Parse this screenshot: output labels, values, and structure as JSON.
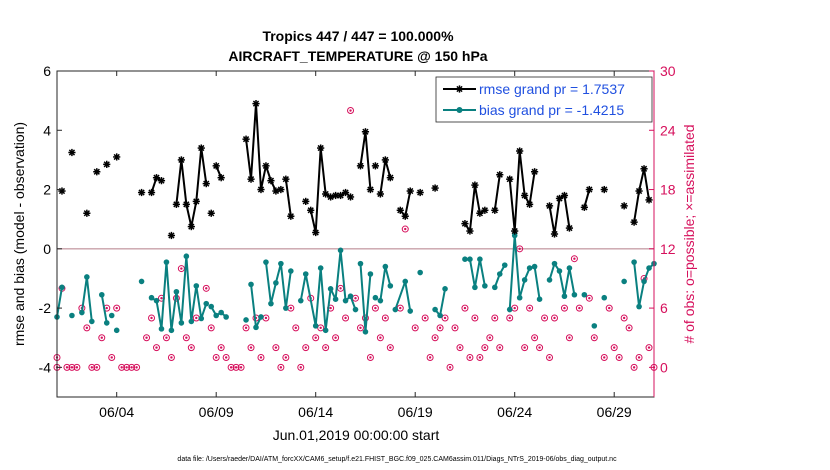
{
  "chart_data": {
    "type": "line",
    "title_line1": "Tropics 447 / 447 = 100.000%",
    "title_line2": "AIRCRAFT_TEMPERATURE @ 150 hPa",
    "ylabel_left": "rmse and bias (model - observation)",
    "ylabel_right": "# of obs: o=possible; ×=assimilated",
    "xlabel": "Jun.01,2019 00:00:00 start",
    "footer": "data file: /Users/raeder/DAI/ATM_forcXX/CAM6_setup/f.e21.FHIST_BGC.f09_025.CAM6assim.011/Diags_NTrS_2019-06/obs_diag_output.nc",
    "xlim": [
      1,
      31
    ],
    "ylim_left": [
      -5,
      6
    ],
    "ylim_right": [
      -3,
      30
    ],
    "x_ticks": [
      {
        "day": 4,
        "label": "06/04"
      },
      {
        "day": 9,
        "label": "06/09"
      },
      {
        "day": 14,
        "label": "06/14"
      },
      {
        "day": 19,
        "label": "06/19"
      },
      {
        "day": 24,
        "label": "06/24"
      },
      {
        "day": 29,
        "label": "06/29"
      }
    ],
    "y_ticks_left": [
      -4,
      -2,
      0,
      2,
      4,
      6
    ],
    "y_ticks_right": [
      0,
      6,
      12,
      18,
      24,
      30
    ],
    "colors": {
      "rmse": "#000000",
      "bias": "#0a8080",
      "obs": "#d6105c",
      "zero_line": "#c8a0a8",
      "right_axis": "#d6105c",
      "legend_text": "#2050e0"
    },
    "series": [
      {
        "name": "rmse grand pr = 1.7537",
        "segments": [
          [
            [
              1.25,
              1.95
            ]
          ],
          [
            [
              1.75,
              3.25
            ]
          ],
          [
            [
              2.5,
              1.2
            ]
          ],
          [
            [
              3.0,
              2.6
            ]
          ],
          [
            [
              3.5,
              2.85
            ]
          ],
          [
            [
              4.0,
              3.1
            ]
          ],
          [
            [
              5.25,
              1.9
            ]
          ],
          [
            [
              5.75,
              1.9
            ],
            [
              6.0,
              2.4
            ],
            [
              6.25,
              2.3
            ]
          ],
          [
            [
              6.75,
              0.45
            ]
          ],
          [
            [
              7.0,
              1.5
            ],
            [
              7.25,
              3.0
            ],
            [
              7.5,
              1.5
            ],
            [
              7.75,
              0.75
            ],
            [
              8.0,
              1.6
            ],
            [
              8.25,
              3.4
            ],
            [
              8.5,
              2.2
            ]
          ],
          [
            [
              8.75,
              1.2
            ]
          ],
          [
            [
              9.0,
              2.8
            ],
            [
              9.25,
              2.4
            ]
          ],
          [
            [
              10.5,
              3.7
            ],
            [
              10.75,
              2.35
            ],
            [
              11.0,
              4.9
            ],
            [
              11.25,
              2.0
            ],
            [
              11.5,
              2.8
            ],
            [
              11.75,
              2.3
            ],
            [
              12.0,
              1.95
            ]
          ],
          [
            [
              12.25,
              2.0
            ]
          ],
          [
            [
              12.5,
              2.35
            ],
            [
              12.75,
              1.1
            ]
          ],
          [
            [
              13.5,
              1.6
            ]
          ],
          [
            [
              13.75,
              1.3
            ],
            [
              14.0,
              0.55
            ],
            [
              14.25,
              3.4
            ],
            [
              14.5,
              1.85
            ],
            [
              14.75,
              1.75
            ],
            [
              15.0,
              1.8
            ],
            [
              15.25,
              1.8
            ],
            [
              15.5,
              1.9
            ],
            [
              15.75,
              1.75
            ]
          ],
          [
            [
              16.25,
              2.8
            ],
            [
              16.5,
              3.95
            ],
            [
              16.75,
              2.0
            ]
          ],
          [
            [
              17.0,
              2.8
            ]
          ],
          [
            [
              17.25,
              1.85
            ],
            [
              17.5,
              3.0
            ],
            [
              17.75,
              2.4
            ]
          ],
          [
            [
              18.25,
              1.3
            ],
            [
              18.5,
              1.1
            ],
            [
              18.75,
              1.95
            ]
          ],
          [
            [
              19.25,
              1.9
            ]
          ],
          [
            [
              20.0,
              2.05
            ]
          ],
          [
            [
              21.5,
              0.85
            ],
            [
              21.75,
              0.6
            ],
            [
              22.0,
              2.15
            ],
            [
              22.25,
              1.2
            ],
            [
              22.5,
              1.3
            ]
          ],
          [
            [
              23.0,
              1.3
            ],
            [
              23.25,
              2.5
            ]
          ],
          [
            [
              23.75,
              2.35
            ],
            [
              24.0,
              0.6
            ],
            [
              24.25,
              3.3
            ],
            [
              24.5,
              1.8
            ],
            [
              24.75,
              1.5
            ],
            [
              25.0,
              2.6
            ]
          ],
          [
            [
              25.75,
              1.45
            ],
            [
              26.0,
              0.5
            ],
            [
              26.25,
              1.7
            ],
            [
              26.5,
              1.8
            ],
            [
              26.75,
              0.7
            ]
          ],
          [
            [
              27.5,
              1.4
            ],
            [
              27.75,
              2.0
            ]
          ],
          [
            [
              28.5,
              2.0
            ]
          ],
          [
            [
              29.5,
              1.45
            ]
          ],
          [
            [
              30.0,
              0.9
            ],
            [
              30.25,
              1.95
            ],
            [
              30.5,
              2.7
            ],
            [
              30.75,
              1.65
            ]
          ]
        ]
      },
      {
        "name": "bias grand pr = -1.4215",
        "segments": [
          [
            [
              1.0,
              -2.3
            ],
            [
              1.25,
              -1.3
            ]
          ],
          [
            [
              1.75,
              -2.25
            ]
          ],
          [
            [
              2.25,
              -2.15
            ],
            [
              2.5,
              -0.95
            ],
            [
              2.75,
              -2.45
            ]
          ],
          [
            [
              3.25,
              -1.55
            ],
            [
              3.5,
              -2.5
            ]
          ],
          [
            [
              3.75,
              -2.25
            ]
          ],
          [
            [
              4.0,
              -2.75
            ]
          ],
          [
            [
              5.25,
              -1.1
            ]
          ],
          [
            [
              5.75,
              -1.65
            ],
            [
              6.0,
              -1.75
            ],
            [
              6.25,
              -2.7
            ],
            [
              6.5,
              -0.45
            ],
            [
              6.75,
              -2.75
            ],
            [
              7.0,
              -1.45
            ],
            [
              7.25,
              -2.5
            ],
            [
              7.5,
              -0.25
            ],
            [
              7.75,
              -2.45
            ],
            [
              8.0,
              -1.25
            ],
            [
              8.25,
              -2.35
            ],
            [
              8.5,
              -1.85
            ]
          ],
          [
            [
              8.75,
              -1.95
            ],
            [
              9.0,
              -2.25
            ],
            [
              9.25,
              -2.15
            ],
            [
              9.5,
              -2.3
            ]
          ],
          [
            [
              10.5,
              -2.4
            ]
          ],
          [
            [
              10.75,
              -1.2
            ],
            [
              11.0,
              -2.65
            ],
            [
              11.25,
              -2.3
            ]
          ],
          [
            [
              11.5,
              -0.45
            ],
            [
              11.75,
              -1.85
            ],
            [
              12.0,
              -1.15
            ],
            [
              12.25,
              -0.5
            ],
            [
              12.5,
              -2.0
            ],
            [
              12.75,
              -0.75
            ]
          ],
          [
            [
              13.25,
              -1.75
            ],
            [
              13.5,
              -0.85
            ],
            [
              14.0,
              -2.6
            ],
            [
              14.25,
              -0.65
            ],
            [
              14.5,
              -2.75
            ],
            [
              14.75,
              -1.35
            ],
            [
              15.0,
              -1.7
            ],
            [
              15.25,
              -0.05
            ],
            [
              15.5,
              -1.75
            ],
            [
              15.75,
              -1.6
            ],
            [
              16.0,
              -2.05
            ]
          ],
          [
            [
              16.25,
              -0.5
            ],
            [
              16.5,
              -2.8
            ],
            [
              16.75,
              -0.85
            ]
          ],
          [
            [
              17.0,
              -1.65
            ]
          ],
          [
            [
              17.25,
              -1.75
            ],
            [
              17.5,
              -0.6
            ],
            [
              17.75,
              -1.25
            ]
          ],
          [
            [
              18.0,
              -2.05
            ],
            [
              18.5,
              -1.1
            ],
            [
              18.75,
              -2.1
            ]
          ],
          [
            [
              19.25,
              -0.8
            ]
          ],
          [
            [
              20.0,
              -2.05
            ],
            [
              20.25,
              -2.25
            ],
            [
              20.5,
              -1.35
            ]
          ],
          [
            [
              21.5,
              -0.35
            ],
            [
              21.75,
              -0.35
            ],
            [
              22.0,
              -1.3
            ],
            [
              22.25,
              -0.35
            ],
            [
              22.5,
              -1.25
            ]
          ],
          [
            [
              23.0,
              -1.3
            ],
            [
              23.25,
              -0.85
            ],
            [
              23.5,
              -0.55
            ]
          ],
          [
            [
              23.75,
              -2.05
            ],
            [
              24.0,
              0.45
            ],
            [
              24.25,
              -1.65
            ],
            [
              24.5,
              -1.05
            ],
            [
              24.75,
              -0.65
            ],
            [
              25.0,
              -0.6
            ],
            [
              25.25,
              -1.7
            ]
          ],
          [
            [
              25.75,
              -1.05
            ],
            [
              26.0,
              -0.5
            ],
            [
              26.25,
              -0.75
            ],
            [
              26.5,
              -1.6
            ],
            [
              26.75,
              -0.65
            ],
            [
              27.0,
              -1.55
            ]
          ],
          [
            [
              27.5,
              -1.55
            ]
          ],
          [
            [
              28.0,
              -2.6
            ]
          ],
          [
            [
              28.5,
              -1.65
            ]
          ],
          [
            [
              29.5,
              -1.1
            ]
          ],
          [
            [
              30.0,
              -0.45
            ],
            [
              30.25,
              -1.95
            ],
            [
              30.5,
              -1.1
            ],
            [
              30.75,
              -0.65
            ],
            [
              31.0,
              -0.5
            ]
          ]
        ]
      }
    ],
    "obs_possible": [
      [
        1.0,
        1
      ],
      [
        1.0,
        0
      ],
      [
        1.25,
        8
      ],
      [
        1.5,
        0
      ],
      [
        1.75,
        0
      ],
      [
        2.0,
        0
      ],
      [
        2.25,
        6
      ],
      [
        2.5,
        4
      ],
      [
        2.75,
        0
      ],
      [
        3.0,
        0
      ],
      [
        3.25,
        3
      ],
      [
        3.5,
        6
      ],
      [
        3.75,
        1
      ],
      [
        4.0,
        6
      ],
      [
        4.25,
        0
      ],
      [
        4.5,
        0
      ],
      [
        4.75,
        0
      ],
      [
        5.0,
        0
      ],
      [
        5.5,
        3
      ],
      [
        5.75,
        5
      ],
      [
        6.0,
        2
      ],
      [
        6.25,
        7
      ],
      [
        6.5,
        3
      ],
      [
        6.75,
        1
      ],
      [
        7.0,
        7
      ],
      [
        7.25,
        10
      ],
      [
        7.5,
        3
      ],
      [
        7.75,
        2
      ],
      [
        8.0,
        5
      ],
      [
        8.5,
        8
      ],
      [
        8.75,
        4
      ],
      [
        9.0,
        1
      ],
      [
        9.25,
        2
      ],
      [
        9.5,
        1
      ],
      [
        9.75,
        0
      ],
      [
        10.0,
        0
      ],
      [
        10.25,
        0
      ],
      [
        10.5,
        4
      ],
      [
        10.75,
        2
      ],
      [
        11.0,
        5
      ],
      [
        11.25,
        1
      ],
      [
        11.5,
        5
      ],
      [
        12.0,
        2
      ],
      [
        12.25,
        0
      ],
      [
        12.5,
        1
      ],
      [
        12.75,
        6
      ],
      [
        13.0,
        4
      ],
      [
        13.25,
        0
      ],
      [
        13.5,
        2
      ],
      [
        13.75,
        7
      ],
      [
        14.0,
        3
      ],
      [
        14.25,
        4
      ],
      [
        14.5,
        2
      ],
      [
        14.75,
        6
      ],
      [
        15.0,
        3
      ],
      [
        15.25,
        8
      ],
      [
        15.5,
        5
      ],
      [
        15.75,
        26
      ],
      [
        16.0,
        7
      ],
      [
        16.25,
        4
      ],
      [
        16.5,
        5
      ],
      [
        16.75,
        1
      ],
      [
        17.0,
        6
      ],
      [
        17.25,
        3
      ],
      [
        17.5,
        5
      ],
      [
        17.75,
        2
      ],
      [
        18.25,
        6
      ],
      [
        18.5,
        14
      ],
      [
        19.0,
        4
      ],
      [
        19.5,
        5
      ],
      [
        19.75,
        1
      ],
      [
        20.0,
        3
      ],
      [
        20.25,
        4
      ],
      [
        20.5,
        5
      ],
      [
        20.75,
        0
      ],
      [
        21.0,
        4
      ],
      [
        21.25,
        2
      ],
      [
        21.5,
        6
      ],
      [
        21.75,
        1
      ],
      [
        22.0,
        5
      ],
      [
        22.25,
        1
      ],
      [
        22.5,
        2
      ],
      [
        22.75,
        3
      ],
      [
        23.0,
        5
      ],
      [
        23.25,
        2
      ],
      [
        23.75,
        5
      ],
      [
        24.0,
        6
      ],
      [
        24.25,
        12
      ],
      [
        24.5,
        2
      ],
      [
        24.75,
        6
      ],
      [
        25.0,
        3
      ],
      [
        25.25,
        2
      ],
      [
        25.5,
        5
      ],
      [
        25.75,
        1
      ],
      [
        26.0,
        5
      ],
      [
        26.5,
        6
      ],
      [
        26.75,
        3
      ],
      [
        27.0,
        11
      ],
      [
        27.25,
        6
      ],
      [
        27.75,
        7
      ],
      [
        28.0,
        3
      ],
      [
        28.5,
        1
      ],
      [
        28.75,
        6
      ],
      [
        29.0,
        2
      ],
      [
        29.25,
        1
      ],
      [
        29.5,
        5
      ],
      [
        29.75,
        4
      ],
      [
        30.0,
        0
      ],
      [
        30.25,
        1
      ],
      [
        30.5,
        9
      ],
      [
        30.75,
        2
      ],
      [
        31.0,
        0
      ]
    ],
    "obs_assimilated": []
  }
}
